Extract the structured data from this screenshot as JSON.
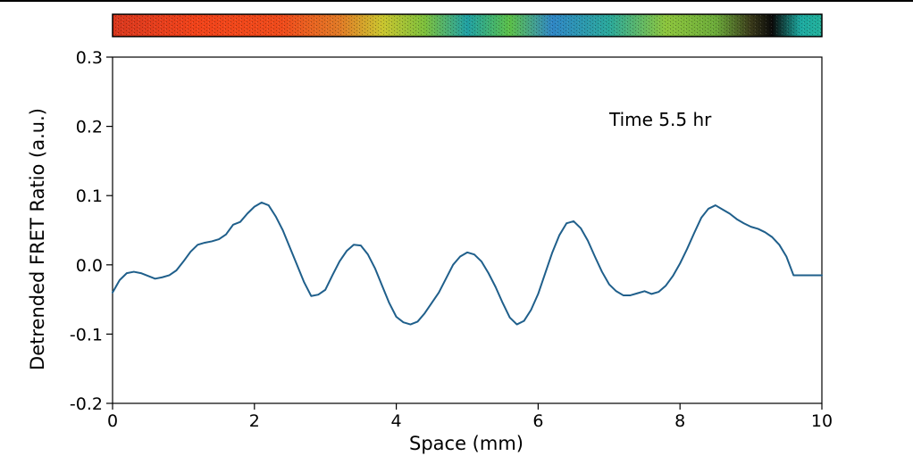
{
  "chart_data": {
    "type": "line",
    "xlabel": "Space (mm)",
    "ylabel": "Detrended FRET Ratio (a.u.)",
    "xlim": [
      0,
      10
    ],
    "ylim": [
      -0.2,
      0.3
    ],
    "x_ticks": [
      "0",
      "2",
      "4",
      "6",
      "8",
      "10"
    ],
    "y_ticks": [
      "0.3",
      "0.2",
      "0.1",
      "0.0",
      "-0.1",
      "-0.2"
    ],
    "annotation": "Time 5.5 hr",
    "grid": false,
    "line_color": "#1f5f8b",
    "colorbar_strip": {
      "description": "FRET ratio image strip above plot",
      "colors": [
        "#e8341c",
        "#f04a17",
        "#d9c22a",
        "#8cc63f",
        "#1aa89a",
        "#2f6fbf",
        "#7ac943",
        "#0b0b0b",
        "#1fb5a0"
      ]
    },
    "series": [
      {
        "x": [
          0.0,
          0.1,
          0.2,
          0.3,
          0.4,
          0.5,
          0.6,
          0.7,
          0.8,
          0.9,
          1.0,
          1.1,
          1.2,
          1.3,
          1.4,
          1.5,
          1.6,
          1.7,
          1.8,
          1.9,
          2.0,
          2.1,
          2.2,
          2.3,
          2.4,
          2.5,
          2.6,
          2.7,
          2.8,
          2.9,
          3.0,
          3.1,
          3.2,
          3.3,
          3.4,
          3.5,
          3.6,
          3.7,
          3.8,
          3.9,
          4.0,
          4.1,
          4.2,
          4.3,
          4.4,
          4.5,
          4.6,
          4.7,
          4.8,
          4.9,
          5.0,
          5.1,
          5.2,
          5.3,
          5.4,
          5.5,
          5.6,
          5.7,
          5.8,
          5.9,
          6.0,
          6.1,
          6.2,
          6.3,
          6.4,
          6.5,
          6.6,
          6.7,
          6.8,
          6.9,
          7.0,
          7.1,
          7.2,
          7.3,
          7.4,
          7.5,
          7.6,
          7.7,
          7.8,
          7.9,
          8.0,
          8.1,
          8.2,
          8.3,
          8.4,
          8.5,
          8.6,
          8.7,
          8.8,
          8.9,
          9.0,
          9.1,
          9.2,
          9.3,
          9.4,
          9.5,
          9.6,
          9.7,
          9.8,
          9.9,
          10.0
        ],
        "y": [
          -0.04,
          -0.022,
          -0.012,
          -0.01,
          -0.012,
          -0.016,
          -0.02,
          -0.018,
          -0.015,
          -0.008,
          0.005,
          0.019,
          0.029,
          0.032,
          0.034,
          0.037,
          0.044,
          0.058,
          0.062,
          0.074,
          0.084,
          0.09,
          0.086,
          0.07,
          0.05,
          0.025,
          0.0,
          -0.025,
          -0.045,
          -0.043,
          -0.036,
          -0.015,
          0.005,
          0.02,
          0.029,
          0.028,
          0.015,
          -0.005,
          -0.03,
          -0.055,
          -0.075,
          -0.083,
          -0.086,
          -0.082,
          -0.07,
          -0.055,
          -0.04,
          -0.02,
          0.0,
          0.012,
          0.018,
          0.015,
          0.005,
          -0.012,
          -0.032,
          -0.055,
          -0.076,
          -0.086,
          -0.081,
          -0.065,
          -0.042,
          -0.012,
          0.018,
          0.043,
          0.06,
          0.063,
          0.053,
          0.035,
          0.012,
          -0.01,
          -0.028,
          -0.038,
          -0.044,
          -0.044,
          -0.041,
          -0.038,
          -0.042,
          -0.039,
          -0.03,
          -0.016,
          0.002,
          0.023,
          0.046,
          0.068,
          0.081,
          0.086,
          0.08,
          0.074,
          0.066,
          0.06,
          0.055,
          0.052,
          0.047,
          0.04,
          0.029,
          0.012,
          -0.015,
          -0.015,
          -0.015,
          -0.015,
          -0.015
        ]
      }
    ]
  }
}
